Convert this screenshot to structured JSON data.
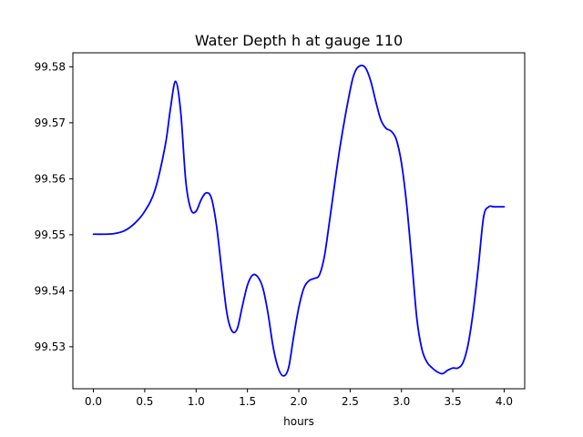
{
  "chart_data": {
    "type": "line",
    "title": "Water Depth h at gauge 110",
    "xlabel": "hours",
    "ylabel": "",
    "xlim": [
      -0.2,
      4.2
    ],
    "ylim": [
      99.5225,
      99.5825
    ],
    "xticks": [
      0.0,
      0.5,
      1.0,
      1.5,
      2.0,
      2.5,
      3.0,
      3.5,
      4.0
    ],
    "xtick_labels": [
      "0.0",
      "0.5",
      "1.0",
      "1.5",
      "2.0",
      "2.5",
      "3.0",
      "3.5",
      "4.0"
    ],
    "yticks": [
      99.53,
      99.54,
      99.55,
      99.56,
      99.57,
      99.58
    ],
    "ytick_labels": [
      "99.53",
      "99.54",
      "99.55",
      "99.56",
      "99.57",
      "99.58"
    ],
    "grid": false,
    "series": [
      {
        "color": "#0000ff",
        "x": [
          0.0,
          0.1,
          0.2,
          0.3,
          0.4,
          0.5,
          0.6,
          0.7,
          0.75,
          0.8,
          0.85,
          0.9,
          0.95,
          1.0,
          1.05,
          1.1,
          1.15,
          1.2,
          1.25,
          1.3,
          1.35,
          1.4,
          1.45,
          1.5,
          1.55,
          1.6,
          1.65,
          1.7,
          1.75,
          1.8,
          1.85,
          1.9,
          1.95,
          2.0,
          2.05,
          2.1,
          2.15,
          2.2,
          2.25,
          2.3,
          2.4,
          2.5,
          2.55,
          2.6,
          2.65,
          2.7,
          2.75,
          2.8,
          2.85,
          2.9,
          2.95,
          3.0,
          3.05,
          3.1,
          3.15,
          3.2,
          3.25,
          3.3,
          3.35,
          3.4,
          3.45,
          3.5,
          3.55,
          3.6,
          3.65,
          3.7,
          3.75,
          3.8,
          3.85,
          3.9,
          3.95,
          4.0
        ],
        "y": [
          99.5501,
          99.5501,
          99.5502,
          99.5507,
          99.552,
          99.5542,
          99.558,
          99.566,
          99.5725,
          99.5774,
          99.572,
          99.5595,
          99.5545,
          99.5542,
          99.5563,
          99.5575,
          99.5565,
          99.5515,
          99.5435,
          99.536,
          99.5328,
          99.5332,
          99.5372,
          99.541,
          99.5428,
          99.5425,
          99.5405,
          99.536,
          99.53,
          99.5262,
          99.5248,
          99.5262,
          99.5318,
          99.537,
          99.5405,
          99.5418,
          99.5422,
          99.5428,
          99.5462,
          99.5525,
          99.5655,
          99.5758,
          99.5792,
          99.5802,
          99.5798,
          99.5775,
          99.5738,
          99.5705,
          99.569,
          99.5685,
          99.567,
          99.5628,
          99.5555,
          99.5455,
          99.535,
          99.5295,
          99.5272,
          99.5262,
          99.5255,
          99.5252,
          99.5258,
          99.5262,
          99.5262,
          99.5272,
          99.5305,
          99.5365,
          99.5445,
          99.5532,
          99.555,
          99.555,
          99.555,
          99.555
        ]
      }
    ]
  }
}
